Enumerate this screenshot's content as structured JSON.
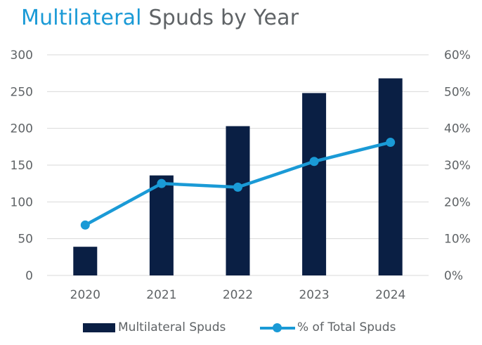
{
  "title": {
    "accent": "Multilateral",
    "rest": "Spuds by Year"
  },
  "colors": {
    "bar": "#0a1f44",
    "line": "#1a9ad6",
    "grid": "#d9d9d9",
    "text": "#5f6366"
  },
  "chart_data": {
    "type": "bar",
    "title": "Multilateral Spuds by Year",
    "categories": [
      "2020",
      "2021",
      "2022",
      "2023",
      "2024"
    ],
    "series": [
      {
        "name": "Multilateral Spuds",
        "type": "bar",
        "axis": "left",
        "values": [
          39,
          136,
          203,
          248,
          268
        ]
      },
      {
        "name": "% of Total Spuds",
        "type": "line",
        "axis": "right",
        "values": [
          13.7,
          25.0,
          24.0,
          31.0,
          36.2
        ]
      }
    ],
    "ylim": [
      0,
      300
    ],
    "yticks": [
      "0",
      "50",
      "100",
      "150",
      "200",
      "250",
      "300"
    ],
    "y2lim": [
      0,
      60
    ],
    "y2ticks": [
      "0%",
      "10%",
      "20%",
      "30%",
      "40%",
      "50%",
      "60%"
    ],
    "grid": true,
    "legend_position": "bottom"
  }
}
